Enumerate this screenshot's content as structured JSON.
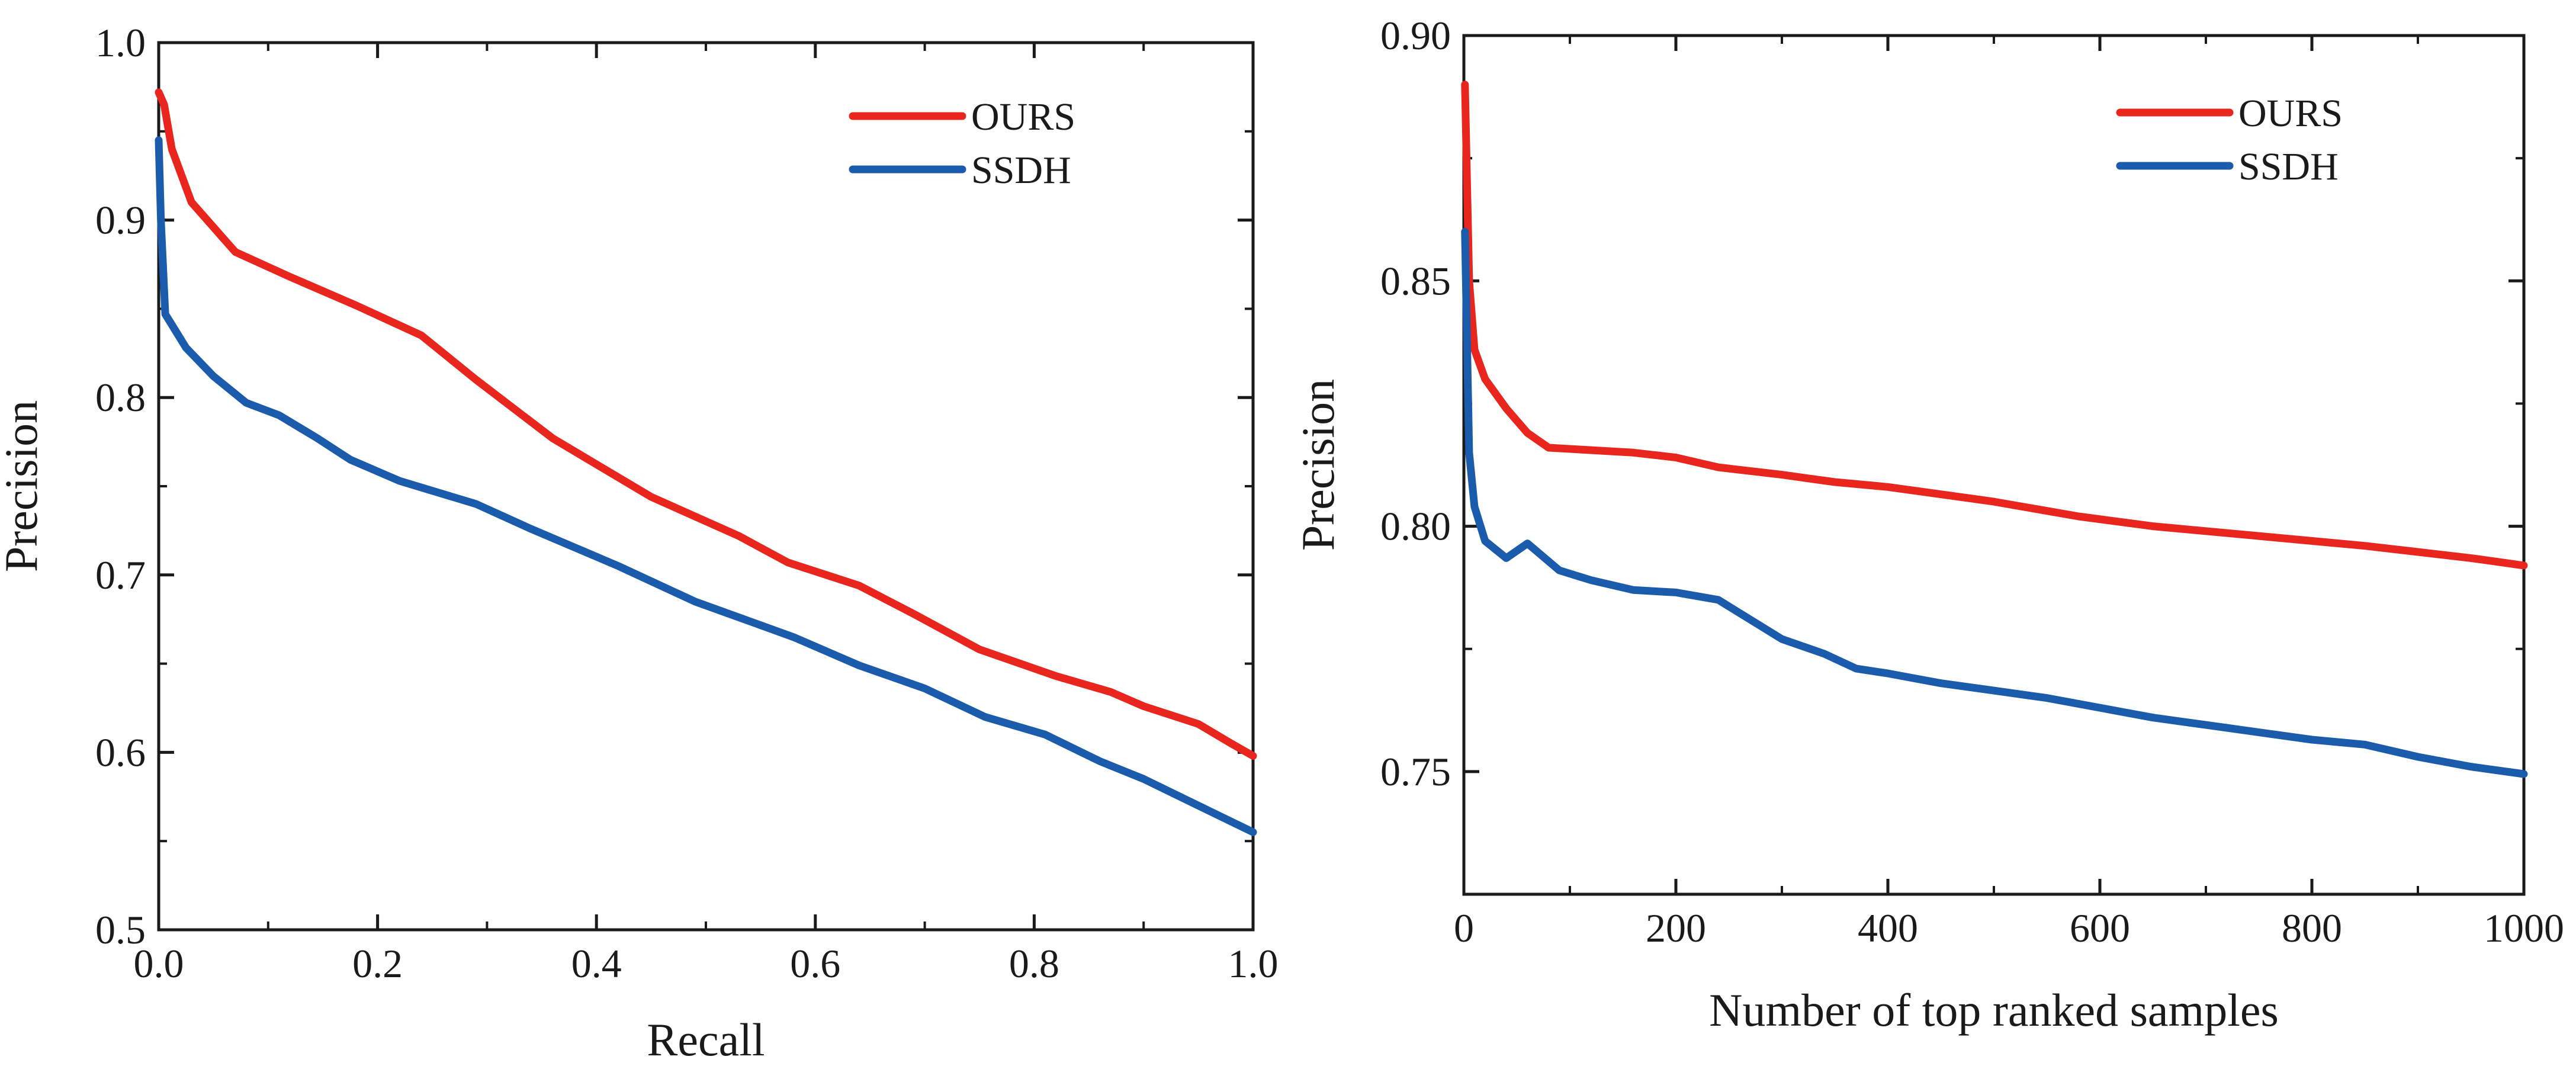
{
  "chart_data": [
    {
      "type": "line",
      "xlabel": "Recall",
      "ylabel": "Precision",
      "xlim": [
        0,
        1
      ],
      "ylim": [
        0.5,
        1.0
      ],
      "xticks": [
        0.0,
        0.2,
        0.4,
        0.6,
        0.8,
        1.0
      ],
      "xtick_labels": [
        "0.0",
        "0.2",
        "0.4",
        "0.6",
        "0.8",
        "1.0"
      ],
      "yticks": [
        0.5,
        0.6,
        0.7,
        0.8,
        0.9,
        1.0
      ],
      "ytick_labels": [
        "0.5",
        "0.6",
        "0.7",
        "0.8",
        "0.9",
        "1.0"
      ],
      "legend_position": "top-right",
      "series": [
        {
          "name": "OURS",
          "color": "#e8261e",
          "x": [
            0.0,
            0.005,
            0.012,
            0.03,
            0.07,
            0.12,
            0.18,
            0.24,
            0.29,
            0.36,
            0.45,
            0.53,
            0.575,
            0.64,
            0.69,
            0.75,
            0.82,
            0.87,
            0.9,
            0.95,
            0.98,
            1.0
          ],
          "y": [
            0.972,
            0.965,
            0.94,
            0.91,
            0.882,
            0.868,
            0.852,
            0.835,
            0.81,
            0.777,
            0.744,
            0.722,
            0.707,
            0.694,
            0.678,
            0.658,
            0.643,
            0.634,
            0.626,
            0.616,
            0.605,
            0.598
          ]
        },
        {
          "name": "SSDH",
          "color": "#1a5bab",
          "x": [
            0.0,
            0.002,
            0.006,
            0.025,
            0.05,
            0.08,
            0.11,
            0.145,
            0.175,
            0.22,
            0.29,
            0.34,
            0.42,
            0.49,
            0.58,
            0.64,
            0.7,
            0.755,
            0.81,
            0.86,
            0.9,
            0.93,
            0.96,
            1.0
          ],
          "y": [
            0.945,
            0.9,
            0.847,
            0.828,
            0.812,
            0.797,
            0.79,
            0.777,
            0.765,
            0.753,
            0.74,
            0.726,
            0.705,
            0.685,
            0.665,
            0.649,
            0.636,
            0.62,
            0.61,
            0.595,
            0.585,
            0.576,
            0.567,
            0.555
          ]
        }
      ]
    },
    {
      "type": "line",
      "xlabel": "Number of top ranked samples",
      "ylabel": "Precision",
      "xlim": [
        0,
        1000
      ],
      "ylim": [
        0.725,
        0.9
      ],
      "xticks": [
        0,
        200,
        400,
        600,
        800,
        1000
      ],
      "xtick_labels": [
        "0",
        "200",
        "400",
        "600",
        "800",
        "1000"
      ],
      "yticks": [
        0.75,
        0.8,
        0.85,
        0.9
      ],
      "ytick_labels": [
        "0.75",
        "0.80",
        "0.85",
        "0.90"
      ],
      "legend_position": "top-right",
      "series": [
        {
          "name": "OURS",
          "color": "#e8261e",
          "x": [
            1,
            5,
            10,
            20,
            40,
            60,
            80,
            120,
            160,
            180,
            200,
            240,
            300,
            350,
            400,
            500,
            580,
            650,
            750,
            850,
            950,
            1000
          ],
          "y": [
            0.89,
            0.85,
            0.836,
            0.83,
            0.824,
            0.819,
            0.816,
            0.8155,
            0.815,
            0.8145,
            0.814,
            0.812,
            0.8105,
            0.809,
            0.808,
            0.805,
            0.802,
            0.8,
            0.798,
            0.796,
            0.7935,
            0.792
          ]
        },
        {
          "name": "SSDH",
          "color": "#1a5bab",
          "x": [
            1,
            5,
            10,
            20,
            40,
            60,
            90,
            120,
            160,
            200,
            240,
            270,
            300,
            340,
            370,
            400,
            450,
            500,
            550,
            600,
            650,
            700,
            750,
            800,
            850,
            900,
            950,
            1000
          ],
          "y": [
            0.86,
            0.815,
            0.804,
            0.797,
            0.7935,
            0.7965,
            0.791,
            0.789,
            0.787,
            0.7865,
            0.785,
            0.781,
            0.777,
            0.774,
            0.771,
            0.77,
            0.768,
            0.7665,
            0.765,
            0.763,
            0.761,
            0.7595,
            0.758,
            0.7565,
            0.7555,
            0.753,
            0.751,
            0.7495
          ]
        }
      ]
    }
  ]
}
